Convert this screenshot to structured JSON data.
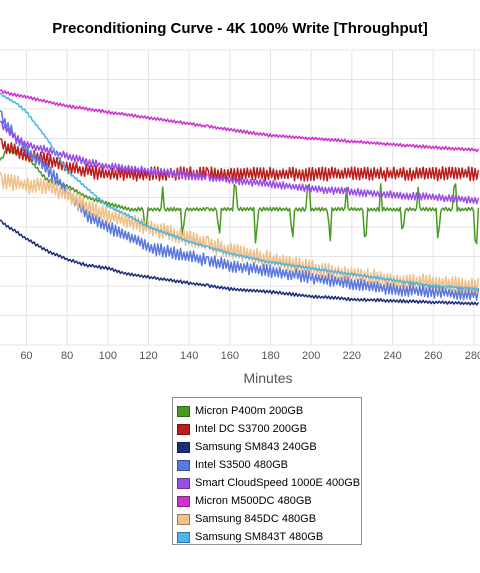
{
  "chart_data": {
    "type": "line",
    "title": "Preconditioning Curve - 4K 100% Write [Throughput]",
    "xlabel": "Minutes",
    "ylabel": "",
    "xlim": [
      47,
      283
    ],
    "ylim": [
      0,
      100
    ],
    "x_ticks": [
      60,
      80,
      100,
      120,
      140,
      160,
      180,
      200,
      220,
      240,
      260,
      280
    ],
    "x_tick_labels": [
      "60",
      "80",
      "100",
      "120",
      "140",
      "160",
      "180",
      "200",
      "220",
      "240",
      "260",
      "280"
    ],
    "grid": true,
    "legend_position": "bottom",
    "series": [
      {
        "name": "Micron P400m 200GB",
        "color": "#4a9a22",
        "noise": 0.6,
        "spike_period": 18,
        "spike_depth": 8,
        "points": [
          [
            47,
            62
          ],
          [
            50,
            66
          ],
          [
            60,
            64
          ],
          [
            70,
            56
          ],
          [
            80,
            54
          ],
          [
            90,
            50
          ],
          [
            100,
            48
          ],
          [
            110,
            46
          ],
          [
            118,
            46
          ],
          [
            130,
            46
          ],
          [
            160,
            46
          ],
          [
            200,
            46
          ],
          [
            240,
            46
          ],
          [
            283,
            46
          ]
        ]
      },
      {
        "name": "Intel DC S3700 200GB",
        "color": "#bb1d1d",
        "noise": 2.2,
        "spike_period": 0,
        "spike_depth": 0,
        "points": [
          [
            47,
            68
          ],
          [
            55,
            66
          ],
          [
            60,
            64
          ],
          [
            70,
            63
          ],
          [
            80,
            60
          ],
          [
            100,
            58
          ],
          [
            120,
            58
          ],
          [
            160,
            58
          ],
          [
            200,
            58
          ],
          [
            240,
            58
          ],
          [
            283,
            58
          ]
        ]
      },
      {
        "name": "Samsung SM843 240GB",
        "color": "#1e2e78",
        "noise": 0.5,
        "spike_period": 0,
        "spike_depth": 0,
        "points": [
          [
            47,
            42
          ],
          [
            60,
            36
          ],
          [
            70,
            32
          ],
          [
            80,
            29
          ],
          [
            90,
            27
          ],
          [
            100,
            26
          ],
          [
            110,
            24
          ],
          [
            120,
            23
          ],
          [
            140,
            21
          ],
          [
            160,
            19
          ],
          [
            180,
            18
          ],
          [
            200,
            16.5
          ],
          [
            220,
            15.5
          ],
          [
            240,
            15
          ],
          [
            260,
            14.5
          ],
          [
            283,
            14
          ]
        ]
      },
      {
        "name": "Intel S3500 480GB",
        "color": "#5a78e0",
        "noise": 2.0,
        "spike_period": 0,
        "spike_depth": 0,
        "points": [
          [
            47,
            78
          ],
          [
            55,
            70
          ],
          [
            60,
            66
          ],
          [
            70,
            60
          ],
          [
            80,
            52
          ],
          [
            90,
            44
          ],
          [
            100,
            40
          ],
          [
            110,
            37
          ],
          [
            120,
            33
          ],
          [
            140,
            30
          ],
          [
            160,
            27
          ],
          [
            180,
            25
          ],
          [
            200,
            23
          ],
          [
            220,
            21
          ],
          [
            240,
            19
          ],
          [
            260,
            18
          ],
          [
            283,
            17
          ]
        ]
      },
      {
        "name": "Smart CloudSpeed 1000E 400GB",
        "color": "#9b4de8",
        "noise": 1.2,
        "spike_period": 0,
        "spike_depth": 0,
        "points": [
          [
            47,
            75
          ],
          [
            55,
            70
          ],
          [
            60,
            68
          ],
          [
            70,
            66
          ],
          [
            80,
            64
          ],
          [
            90,
            62
          ],
          [
            100,
            60.5
          ],
          [
            120,
            59
          ],
          [
            140,
            57.5
          ],
          [
            160,
            56
          ],
          [
            180,
            54.5
          ],
          [
            200,
            53
          ],
          [
            220,
            52
          ],
          [
            240,
            51
          ],
          [
            260,
            50
          ],
          [
            283,
            49
          ]
        ]
      },
      {
        "name": "Micron M500DC 480GB",
        "color": "#cc33cc",
        "noise": 0.5,
        "spike_period": 0,
        "spike_depth": 0,
        "points": [
          [
            47,
            86
          ],
          [
            60,
            84
          ],
          [
            80,
            81
          ],
          [
            100,
            79
          ],
          [
            120,
            77
          ],
          [
            140,
            75
          ],
          [
            160,
            73
          ],
          [
            180,
            71
          ],
          [
            200,
            70
          ],
          [
            220,
            69
          ],
          [
            240,
            68
          ],
          [
            260,
            67
          ],
          [
            283,
            66
          ]
        ]
      },
      {
        "name": "Samsung 845DC 480GB",
        "color": "#f0c088",
        "noise": 2.6,
        "spike_period": 0,
        "spike_depth": 0,
        "points": [
          [
            47,
            56
          ],
          [
            60,
            54
          ],
          [
            70,
            54
          ],
          [
            80,
            51
          ],
          [
            90,
            47
          ],
          [
            100,
            44
          ],
          [
            110,
            42
          ],
          [
            120,
            40
          ],
          [
            140,
            36
          ],
          [
            160,
            32
          ],
          [
            180,
            29
          ],
          [
            200,
            26
          ],
          [
            220,
            24
          ],
          [
            240,
            22
          ],
          [
            260,
            21
          ],
          [
            283,
            20
          ]
        ]
      },
      {
        "name": "Samsung SM843T 480GB",
        "color": "#4ab5e6",
        "noise": 0.4,
        "spike_period": 0,
        "spike_depth": 0,
        "points": [
          [
            47,
            85
          ],
          [
            55,
            82
          ],
          [
            60,
            79
          ],
          [
            70,
            70
          ],
          [
            80,
            59
          ],
          [
            90,
            53
          ],
          [
            100,
            47
          ],
          [
            110,
            44
          ],
          [
            120,
            40
          ],
          [
            140,
            35
          ],
          [
            160,
            31
          ],
          [
            180,
            28
          ],
          [
            200,
            26
          ],
          [
            220,
            24
          ],
          [
            240,
            22
          ],
          [
            260,
            20
          ],
          [
            283,
            19
          ]
        ]
      }
    ]
  }
}
